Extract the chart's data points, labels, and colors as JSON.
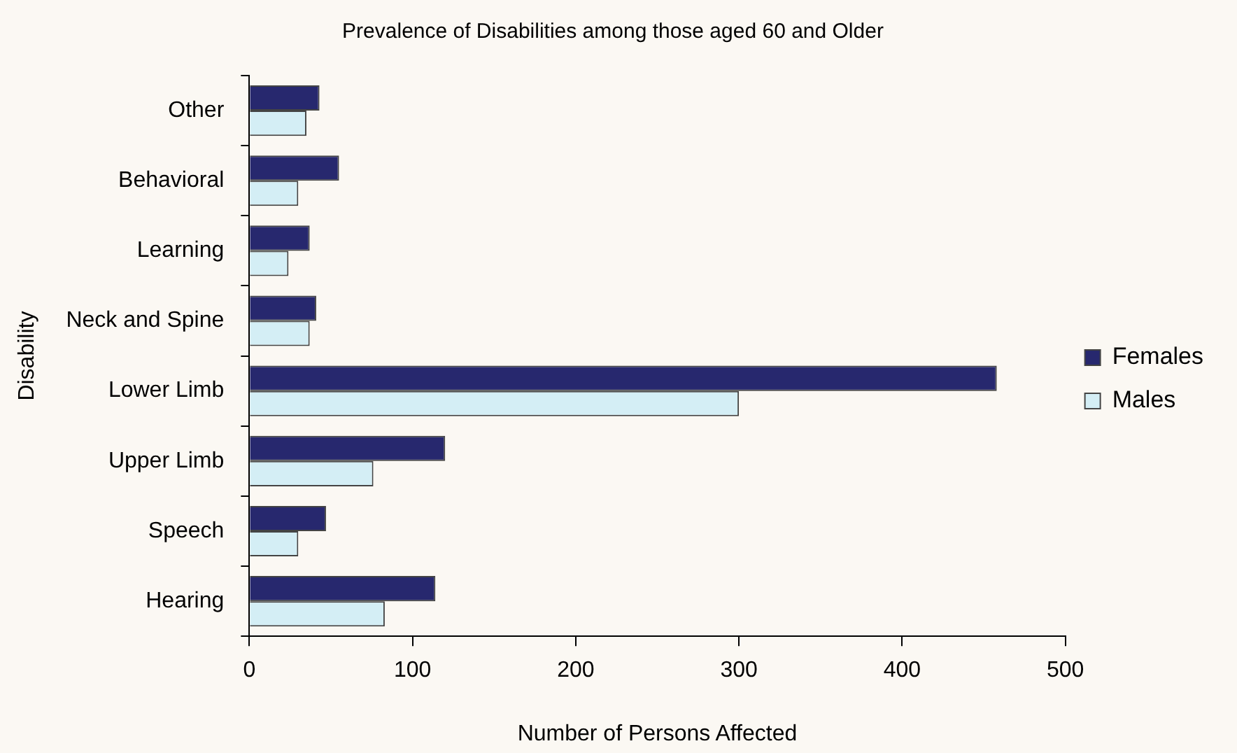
{
  "chart_data": {
    "type": "bar",
    "orientation": "horizontal",
    "title": "Prevalence of Disabilities among those aged 60 and Older",
    "xlabel": "Number of Persons Affected",
    "ylabel": "Disability",
    "categories": [
      "Other",
      "Behavioral",
      "Learning",
      "Neck and Spine",
      "Lower Limb",
      "Upper Limb",
      "Speech",
      "Hearing"
    ],
    "series": [
      {
        "name": "Females",
        "color": "#27286e",
        "values": [
          43,
          55,
          37,
          41,
          458,
          120,
          47,
          114
        ]
      },
      {
        "name": "Males",
        "color": "#d4eef5",
        "values": [
          35,
          30,
          24,
          37,
          300,
          76,
          30,
          83
        ]
      }
    ],
    "xlim": [
      0,
      500
    ],
    "xticks": [
      0,
      100,
      200,
      300,
      400,
      500
    ],
    "grid": false,
    "legend": "right"
  }
}
